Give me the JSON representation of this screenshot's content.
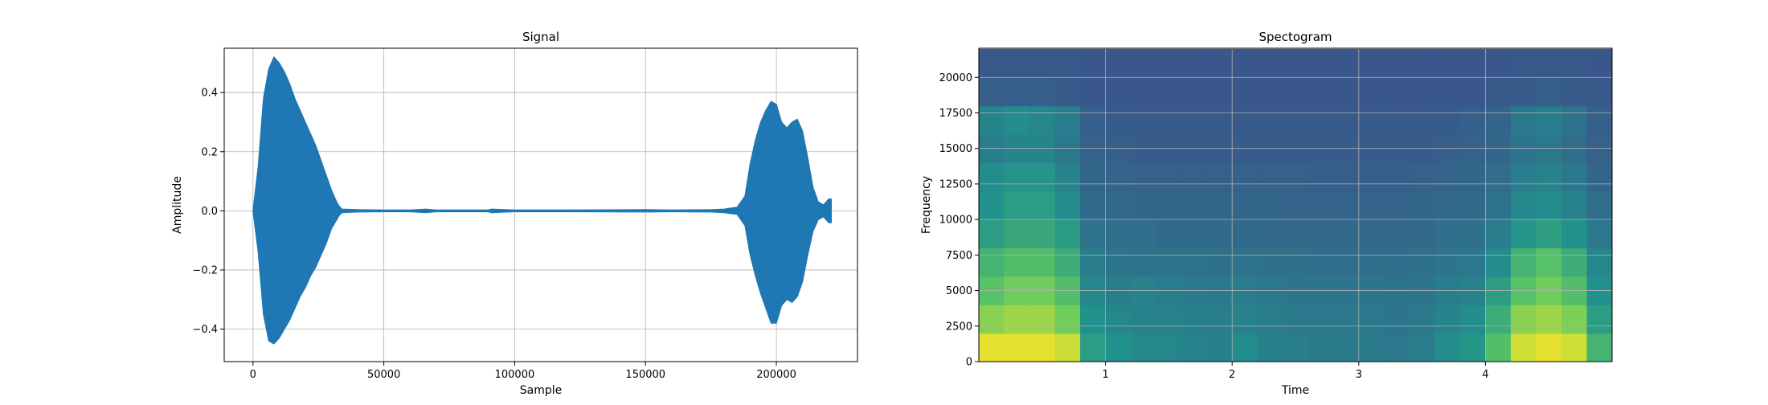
{
  "chart_data": [
    {
      "type": "line",
      "title": "Signal",
      "xlabel": "Sample",
      "ylabel": "Amplitude",
      "xlim": [
        -11000,
        231000
      ],
      "ylim": [
        -0.51,
        0.55
      ],
      "xticks": [
        0,
        50000,
        100000,
        150000,
        200000
      ],
      "xtick_labels": [
        "0",
        "50000",
        "100000",
        "150000",
        "200000"
      ],
      "yticks": [
        -0.4,
        -0.2,
        0.0,
        0.2,
        0.4
      ],
      "ytick_labels": [
        "−0.4",
        "−0.2",
        "0.0",
        "0.2",
        "0.4"
      ],
      "grid": true,
      "color": "#1f77b4",
      "series": [
        {
          "envelope": {
            "x": [
              0,
              2000,
              4000,
              6000,
              8000,
              10000,
              12000,
              14000,
              16000,
              18000,
              20000,
              22000,
              24000,
              26000,
              28000,
              30000,
              32000,
              33000,
              34000,
              40000,
              50000,
              60000,
              66000,
              70000,
              80000,
              90000,
              91000,
              100000,
              120000,
              150000,
              160000,
              175000,
              180000,
              185000,
              188000,
              190000,
              192000,
              194000,
              196000,
              198000,
              200000,
              202000,
              204000,
              206000,
              208000,
              210000,
              212000,
              214000,
              216000,
              218000,
              220000,
              221000
            ],
            "upper": [
              0.0,
              0.15,
              0.38,
              0.48,
              0.52,
              0.5,
              0.47,
              0.43,
              0.38,
              0.34,
              0.3,
              0.26,
              0.22,
              0.17,
              0.12,
              0.07,
              0.03,
              0.015,
              0.006,
              0.004,
              0.003,
              0.003,
              0.006,
              0.003,
              0.003,
              0.003,
              0.006,
              0.003,
              0.003,
              0.004,
              0.003,
              0.004,
              0.006,
              0.012,
              0.05,
              0.16,
              0.24,
              0.3,
              0.34,
              0.37,
              0.36,
              0.3,
              0.28,
              0.3,
              0.31,
              0.27,
              0.18,
              0.08,
              0.03,
              0.02,
              0.04,
              0.04
            ],
            "lower": [
              0.0,
              -0.14,
              -0.35,
              -0.44,
              -0.45,
              -0.43,
              -0.4,
              -0.37,
              -0.33,
              -0.29,
              -0.26,
              -0.22,
              -0.19,
              -0.15,
              -0.11,
              -0.06,
              -0.03,
              -0.015,
              -0.006,
              -0.004,
              -0.003,
              -0.003,
              -0.006,
              -0.003,
              -0.003,
              -0.003,
              -0.006,
              -0.003,
              -0.003,
              -0.004,
              -0.003,
              -0.004,
              -0.006,
              -0.012,
              -0.05,
              -0.15,
              -0.22,
              -0.28,
              -0.33,
              -0.38,
              -0.38,
              -0.32,
              -0.3,
              -0.31,
              -0.29,
              -0.24,
              -0.15,
              -0.07,
              -0.03,
              -0.02,
              -0.04,
              -0.04
            ]
          }
        }
      ]
    },
    {
      "type": "heatmap",
      "title": "Spectogram",
      "xlabel": "Time",
      "ylabel": "Frequency",
      "xlim": [
        0.0,
        5.0
      ],
      "ylim": [
        0,
        22050
      ],
      "xticks": [
        1,
        2,
        3,
        4
      ],
      "xtick_labels": [
        "1",
        "2",
        "3",
        "4"
      ],
      "yticks": [
        0,
        2500,
        5000,
        7500,
        10000,
        12500,
        15000,
        17500,
        20000
      ],
      "ytick_labels": [
        "0",
        "2500",
        "5000",
        "7500",
        "10000",
        "12500",
        "15000",
        "17500",
        "20000"
      ],
      "grid": true,
      "colormap": [
        "#440154",
        "#3b528b",
        "#21918c",
        "#5ec962",
        "#fde725"
      ],
      "value_range": [
        0,
        1
      ],
      "time_bins": [
        0.1,
        0.3,
        0.5,
        0.7,
        0.9,
        1.1,
        1.3,
        1.5,
        1.7,
        1.9,
        2.1,
        2.3,
        2.5,
        2.7,
        2.9,
        3.1,
        3.3,
        3.5,
        3.7,
        3.9,
        4.1,
        4.3,
        4.5,
        4.7,
        4.9
      ],
      "freq_bins": [
        1000,
        3000,
        5000,
        7000,
        9000,
        11000,
        13000,
        15000,
        17000,
        19000,
        21000
      ],
      "values": [
        [
          0.96,
          0.96,
          0.96,
          0.92,
          0.55,
          0.5,
          0.46,
          0.46,
          0.44,
          0.43,
          0.48,
          0.43,
          0.42,
          0.41,
          0.41,
          0.41,
          0.4,
          0.42,
          0.48,
          0.52,
          0.7,
          0.93,
          0.96,
          0.93,
          0.65
        ],
        [
          0.82,
          0.85,
          0.85,
          0.78,
          0.5,
          0.46,
          0.44,
          0.44,
          0.43,
          0.42,
          0.44,
          0.42,
          0.41,
          0.4,
          0.4,
          0.4,
          0.39,
          0.41,
          0.45,
          0.48,
          0.62,
          0.82,
          0.85,
          0.8,
          0.55
        ],
        [
          0.72,
          0.78,
          0.78,
          0.7,
          0.46,
          0.42,
          0.44,
          0.42,
          0.41,
          0.4,
          0.42,
          0.4,
          0.39,
          0.39,
          0.39,
          0.39,
          0.38,
          0.39,
          0.42,
          0.44,
          0.55,
          0.72,
          0.78,
          0.7,
          0.5
        ],
        [
          0.65,
          0.7,
          0.7,
          0.62,
          0.42,
          0.39,
          0.38,
          0.38,
          0.38,
          0.37,
          0.38,
          0.37,
          0.37,
          0.36,
          0.36,
          0.36,
          0.36,
          0.37,
          0.39,
          0.4,
          0.48,
          0.65,
          0.72,
          0.62,
          0.46
        ],
        [
          0.55,
          0.6,
          0.6,
          0.54,
          0.38,
          0.36,
          0.36,
          0.35,
          0.35,
          0.35,
          0.35,
          0.34,
          0.34,
          0.34,
          0.34,
          0.34,
          0.34,
          0.34,
          0.36,
          0.37,
          0.42,
          0.52,
          0.56,
          0.5,
          0.4
        ],
        [
          0.5,
          0.55,
          0.55,
          0.48,
          0.35,
          0.34,
          0.33,
          0.33,
          0.33,
          0.33,
          0.33,
          0.33,
          0.32,
          0.32,
          0.32,
          0.32,
          0.32,
          0.33,
          0.34,
          0.35,
          0.38,
          0.46,
          0.48,
          0.44,
          0.36
        ],
        [
          0.48,
          0.52,
          0.52,
          0.44,
          0.33,
          0.32,
          0.31,
          0.31,
          0.31,
          0.31,
          0.31,
          0.31,
          0.31,
          0.3,
          0.3,
          0.3,
          0.3,
          0.31,
          0.32,
          0.33,
          0.36,
          0.42,
          0.44,
          0.4,
          0.33
        ],
        [
          0.42,
          0.45,
          0.45,
          0.4,
          0.31,
          0.3,
          0.29,
          0.29,
          0.29,
          0.29,
          0.29,
          0.29,
          0.29,
          0.29,
          0.29,
          0.29,
          0.29,
          0.29,
          0.3,
          0.31,
          0.33,
          0.38,
          0.4,
          0.36,
          0.31
        ],
        [
          0.45,
          0.48,
          0.46,
          0.42,
          0.3,
          0.29,
          0.28,
          0.28,
          0.28,
          0.28,
          0.28,
          0.28,
          0.28,
          0.28,
          0.28,
          0.28,
          0.28,
          0.28,
          0.29,
          0.3,
          0.32,
          0.4,
          0.42,
          0.38,
          0.3
        ],
        [
          0.3,
          0.3,
          0.3,
          0.29,
          0.27,
          0.27,
          0.27,
          0.27,
          0.27,
          0.27,
          0.27,
          0.27,
          0.27,
          0.27,
          0.27,
          0.27,
          0.27,
          0.27,
          0.27,
          0.27,
          0.28,
          0.29,
          0.3,
          0.29,
          0.28
        ],
        [
          0.28,
          0.28,
          0.28,
          0.28,
          0.27,
          0.27,
          0.27,
          0.27,
          0.27,
          0.27,
          0.27,
          0.27,
          0.27,
          0.27,
          0.27,
          0.27,
          0.27,
          0.27,
          0.27,
          0.27,
          0.27,
          0.28,
          0.28,
          0.28,
          0.27
        ]
      ]
    }
  ]
}
